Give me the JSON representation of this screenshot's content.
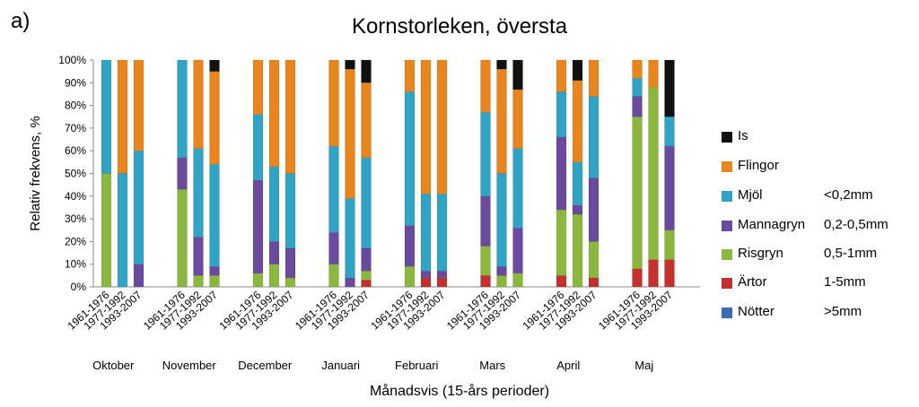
{
  "panel_label": "a)",
  "chart_data": {
    "type": "bar",
    "stacked": true,
    "title": "Kornstorleken, översta",
    "xlabel": "Månadsvis (15-års perioder)",
    "ylabel": "Relativ frekvens, %",
    "ylim": [
      0,
      100
    ],
    "yticks": [
      "0%",
      "10%",
      "20%",
      "30%",
      "40%",
      "50%",
      "60%",
      "70%",
      "80%",
      "90%",
      "100%"
    ],
    "months": [
      "Oktober",
      "November",
      "December",
      "Januari",
      "Februari",
      "Mars",
      "April",
      "Maj"
    ],
    "periods": [
      "1961-1976",
      "1977-1992",
      "1993-2007"
    ],
    "legend": [
      {
        "name": "Is",
        "size": "",
        "color": "#111111"
      },
      {
        "name": "Flingor",
        "size": "",
        "color": "#e8851f"
      },
      {
        "name": "Mjöl",
        "size": "<0,2mm",
        "color": "#31a3c5"
      },
      {
        "name": "Mannagryn",
        "size": "0,2-0,5mm",
        "color": "#6a4a9c"
      },
      {
        "name": "Risgryn",
        "size": "0,5-1mm",
        "color": "#8cb73f"
      },
      {
        "name": "Ärtor",
        "size": "1-5mm",
        "color": "#c2312e"
      },
      {
        "name": "Nötter",
        "size": ">5mm",
        "color": "#3a6cb5"
      }
    ],
    "series_order": [
      "Nötter",
      "Ärtor",
      "Risgryn",
      "Mannagryn",
      "Mjöl",
      "Flingor",
      "Is"
    ],
    "bars": [
      {
        "month": "Oktober",
        "period": "1961-1976",
        "values": [
          0,
          0,
          50,
          0,
          50,
          0,
          0
        ]
      },
      {
        "month": "Oktober",
        "period": "1977-1992",
        "values": [
          0,
          0,
          0,
          0,
          50,
          50,
          0
        ]
      },
      {
        "month": "Oktober",
        "period": "1993-2007",
        "values": [
          0,
          0,
          0,
          10,
          50,
          40,
          0
        ]
      },
      {
        "month": "November",
        "period": "1961-1976",
        "values": [
          0,
          0,
          43,
          14,
          43,
          0,
          0
        ]
      },
      {
        "month": "November",
        "period": "1977-1992",
        "values": [
          0,
          0,
          5,
          17,
          39,
          39,
          0
        ]
      },
      {
        "month": "November",
        "period": "1993-2007",
        "values": [
          0,
          0,
          5,
          4,
          45,
          41,
          5
        ]
      },
      {
        "month": "December",
        "period": "1961-1976",
        "values": [
          0,
          0,
          6,
          41,
          29,
          24,
          0
        ]
      },
      {
        "month": "December",
        "period": "1977-1992",
        "values": [
          0,
          0,
          10,
          10,
          33,
          47,
          0
        ]
      },
      {
        "month": "December",
        "period": "1993-2007",
        "values": [
          0,
          0,
          4,
          13,
          33,
          50,
          0
        ]
      },
      {
        "month": "Januari",
        "period": "1961-1976",
        "values": [
          0,
          0,
          10,
          14,
          38,
          38,
          0
        ]
      },
      {
        "month": "Januari",
        "period": "1977-1992",
        "values": [
          0,
          0,
          0,
          4,
          35,
          57,
          4
        ]
      },
      {
        "month": "Januari",
        "period": "1993-2007",
        "values": [
          0,
          3,
          4,
          10,
          40,
          33,
          10
        ]
      },
      {
        "month": "Februari",
        "period": "1961-1976",
        "values": [
          0,
          0,
          9,
          18,
          59,
          14,
          0
        ]
      },
      {
        "month": "Februari",
        "period": "1977-1992",
        "values": [
          0,
          4,
          0,
          3,
          34,
          59,
          0
        ]
      },
      {
        "month": "Februari",
        "period": "1993-2007",
        "values": [
          0,
          4,
          0,
          3,
          34,
          59,
          0
        ]
      },
      {
        "month": "Mars",
        "period": "1961-1976",
        "values": [
          0,
          5,
          13,
          22,
          37,
          23,
          0
        ]
      },
      {
        "month": "Mars",
        "period": "1977-1992",
        "values": [
          0,
          0,
          5,
          4,
          41,
          46,
          4
        ]
      },
      {
        "month": "Mars",
        "period": "1993-2007",
        "values": [
          0,
          0,
          6,
          20,
          35,
          26,
          13
        ]
      },
      {
        "month": "April",
        "period": "1961-1976",
        "values": [
          0,
          5,
          29,
          32,
          20,
          14,
          0
        ]
      },
      {
        "month": "April",
        "period": "1977-1992",
        "values": [
          0,
          0,
          32,
          4,
          19,
          36,
          9
        ]
      },
      {
        "month": "April",
        "period": "1993-2007",
        "values": [
          0,
          4,
          16,
          28,
          36,
          16,
          0
        ]
      },
      {
        "month": "Maj",
        "period": "1961-1976",
        "values": [
          0,
          8,
          67,
          9,
          8,
          8,
          0
        ]
      },
      {
        "month": "Maj",
        "period": "1977-1992",
        "values": [
          0,
          12,
          76,
          0,
          0,
          12,
          0
        ]
      },
      {
        "month": "Maj",
        "period": "1993-2007",
        "values": [
          0,
          12,
          13,
          37,
          13,
          0,
          25
        ]
      }
    ]
  }
}
